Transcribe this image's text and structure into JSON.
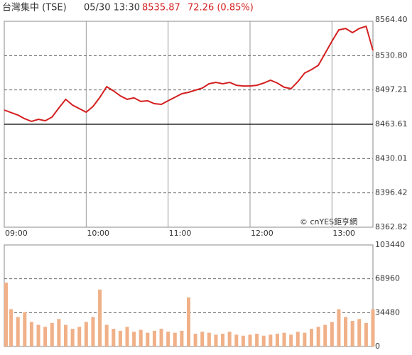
{
  "header": {
    "title": "台灣集中 (TSE)",
    "datetime": "05/30 13:30",
    "price": 8535.87,
    "change": "72.26 (0.85%)"
  },
  "chart_data": [
    {
      "type": "line",
      "annotation": "© cnYES鉅亨網",
      "color": "#d42020",
      "x": [
        "09:00",
        "09:05",
        "09:10",
        "09:15",
        "09:20",
        "09:25",
        "09:30",
        "09:35",
        "09:40",
        "09:45",
        "09:50",
        "09:55",
        "10:00",
        "10:05",
        "10:10",
        "10:15",
        "10:20",
        "10:25",
        "10:30",
        "10:35",
        "10:40",
        "10:45",
        "10:50",
        "10:55",
        "11:00",
        "11:05",
        "11:10",
        "11:15",
        "11:20",
        "11:25",
        "11:30",
        "11:35",
        "11:40",
        "11:45",
        "11:50",
        "11:55",
        "12:00",
        "12:05",
        "12:10",
        "12:15",
        "12:20",
        "12:25",
        "12:30",
        "12:35",
        "12:40",
        "12:45",
        "12:50",
        "12:55",
        "13:00",
        "13:05",
        "13:10",
        "13:15",
        "13:20",
        "13:25",
        "13:30"
      ],
      "values": [
        8477.5,
        8475,
        8472.6,
        8469,
        8466.4,
        8468.5,
        8467,
        8470.6,
        8479.6,
        8488,
        8482.4,
        8478.9,
        8475.4,
        8481,
        8490,
        8500.4,
        8496.3,
        8491.4,
        8488,
        8489.5,
        8485.9,
        8486.6,
        8483.8,
        8483.1,
        8486.6,
        8490,
        8493.5,
        8494.9,
        8497,
        8499,
        8503.2,
        8504.6,
        8503.2,
        8504.6,
        8501.8,
        8501.1,
        8501.1,
        8501.8,
        8503.9,
        8506.7,
        8503.9,
        8499.8,
        8498.4,
        8505.3,
        8513.7,
        8517.1,
        8521.3,
        8533.1,
        8544.9,
        8556,
        8557.4,
        8553.3,
        8557.4,
        8559.5,
        8535.87
      ],
      "xlim": [
        "09:00",
        "13:30"
      ],
      "xticks": [
        "09:00",
        "10:00",
        "11:00",
        "12:00",
        "13:00"
      ],
      "ylim": [
        8362.82,
        8564.4
      ],
      "yticks": [
        {
          "value": 8564.4,
          "label": "8564.40"
        },
        {
          "value": 8530.8,
          "label": "8530.80"
        },
        8497.21,
        8463.61,
        8430.01,
        8396.42,
        8362.82
      ],
      "prev_close": 8463.61
    },
    {
      "type": "bar",
      "color": "#f0b088",
      "x": [
        "09:00",
        "09:05",
        "09:10",
        "09:15",
        "09:20",
        "09:25",
        "09:30",
        "09:35",
        "09:40",
        "09:45",
        "09:50",
        "09:55",
        "10:00",
        "10:05",
        "10:10",
        "10:15",
        "10:20",
        "10:25",
        "10:30",
        "10:35",
        "10:40",
        "10:45",
        "10:50",
        "10:55",
        "11:00",
        "11:05",
        "11:10",
        "11:15",
        "11:20",
        "11:25",
        "11:30",
        "11:35",
        "11:40",
        "11:45",
        "11:50",
        "11:55",
        "12:00",
        "12:05",
        "12:10",
        "12:15",
        "12:20",
        "12:25",
        "12:30",
        "12:35",
        "12:40",
        "12:45",
        "12:50",
        "12:55",
        "13:00",
        "13:05",
        "13:10",
        "13:15",
        "13:20",
        "13:25",
        "13:30"
      ],
      "values": [
        65000,
        38000,
        30000,
        35000,
        25000,
        22000,
        20000,
        24000,
        28000,
        22000,
        18000,
        20000,
        25000,
        30000,
        58000,
        22000,
        18000,
        16000,
        20000,
        15000,
        17000,
        14000,
        16000,
        18000,
        15000,
        14000,
        16000,
        50000,
        13000,
        15000,
        14000,
        12000,
        13000,
        15000,
        12000,
        11000,
        12000,
        13000,
        11000,
        12000,
        13000,
        14000,
        12000,
        15000,
        14000,
        18000,
        20000,
        22000,
        25000,
        38000,
        30000,
        26000,
        28000,
        24000,
        38000
      ],
      "xlim": [
        "09:00",
        "13:30"
      ],
      "ylim": [
        0,
        103440
      ],
      "yticks": [
        0,
        34480,
        68960,
        103440
      ]
    }
  ]
}
